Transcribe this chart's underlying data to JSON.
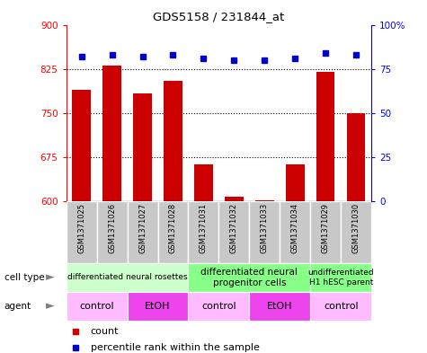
{
  "title": "GDS5158 / 231844_at",
  "samples": [
    "GSM1371025",
    "GSM1371026",
    "GSM1371027",
    "GSM1371028",
    "GSM1371031",
    "GSM1371032",
    "GSM1371033",
    "GSM1371034",
    "GSM1371029",
    "GSM1371030"
  ],
  "counts": [
    790,
    830,
    783,
    805,
    663,
    607,
    602,
    663,
    820,
    750
  ],
  "percentiles": [
    82,
    83,
    82,
    83,
    81,
    80,
    80,
    81,
    84,
    83
  ],
  "ylim_left": [
    600,
    900
  ],
  "ylim_right": [
    0,
    100
  ],
  "yticks_left": [
    600,
    675,
    750,
    825,
    900
  ],
  "yticks_right": [
    0,
    25,
    50,
    75,
    100
  ],
  "ytick_right_labels": [
    "0",
    "25",
    "50",
    "75",
    "100%"
  ],
  "bar_color": "#cc0000",
  "dot_color": "#0000cc",
  "bar_bottom": 600,
  "cell_type_groups": [
    {
      "label": "differentiated neural rosettes",
      "start": 0,
      "end": 4,
      "color": "#ccffcc",
      "fontsize": 6.5
    },
    {
      "label": "differentiated neural\nprogenitor cells",
      "start": 4,
      "end": 8,
      "color": "#88ff88",
      "fontsize": 7.5
    },
    {
      "label": "undifferentiated\nH1 hESC parent",
      "start": 8,
      "end": 10,
      "color": "#88ff88",
      "fontsize": 6.5
    }
  ],
  "agent_groups": [
    {
      "label": "control",
      "start": 0,
      "end": 2,
      "color": "#ffbbff"
    },
    {
      "label": "EtOH",
      "start": 2,
      "end": 4,
      "color": "#ee44ee"
    },
    {
      "label": "control",
      "start": 4,
      "end": 6,
      "color": "#ffbbff"
    },
    {
      "label": "EtOH",
      "start": 6,
      "end": 8,
      "color": "#ee44ee"
    },
    {
      "label": "control",
      "start": 8,
      "end": 10,
      "color": "#ffbbff"
    }
  ],
  "row_label_cell_type": "cell type",
  "row_label_agent": "agent",
  "legend_count_label": "count",
  "legend_percentile_label": "percentile rank within the sample",
  "sample_bg_color": "#c8c8c8",
  "sample_fontsize": 6
}
